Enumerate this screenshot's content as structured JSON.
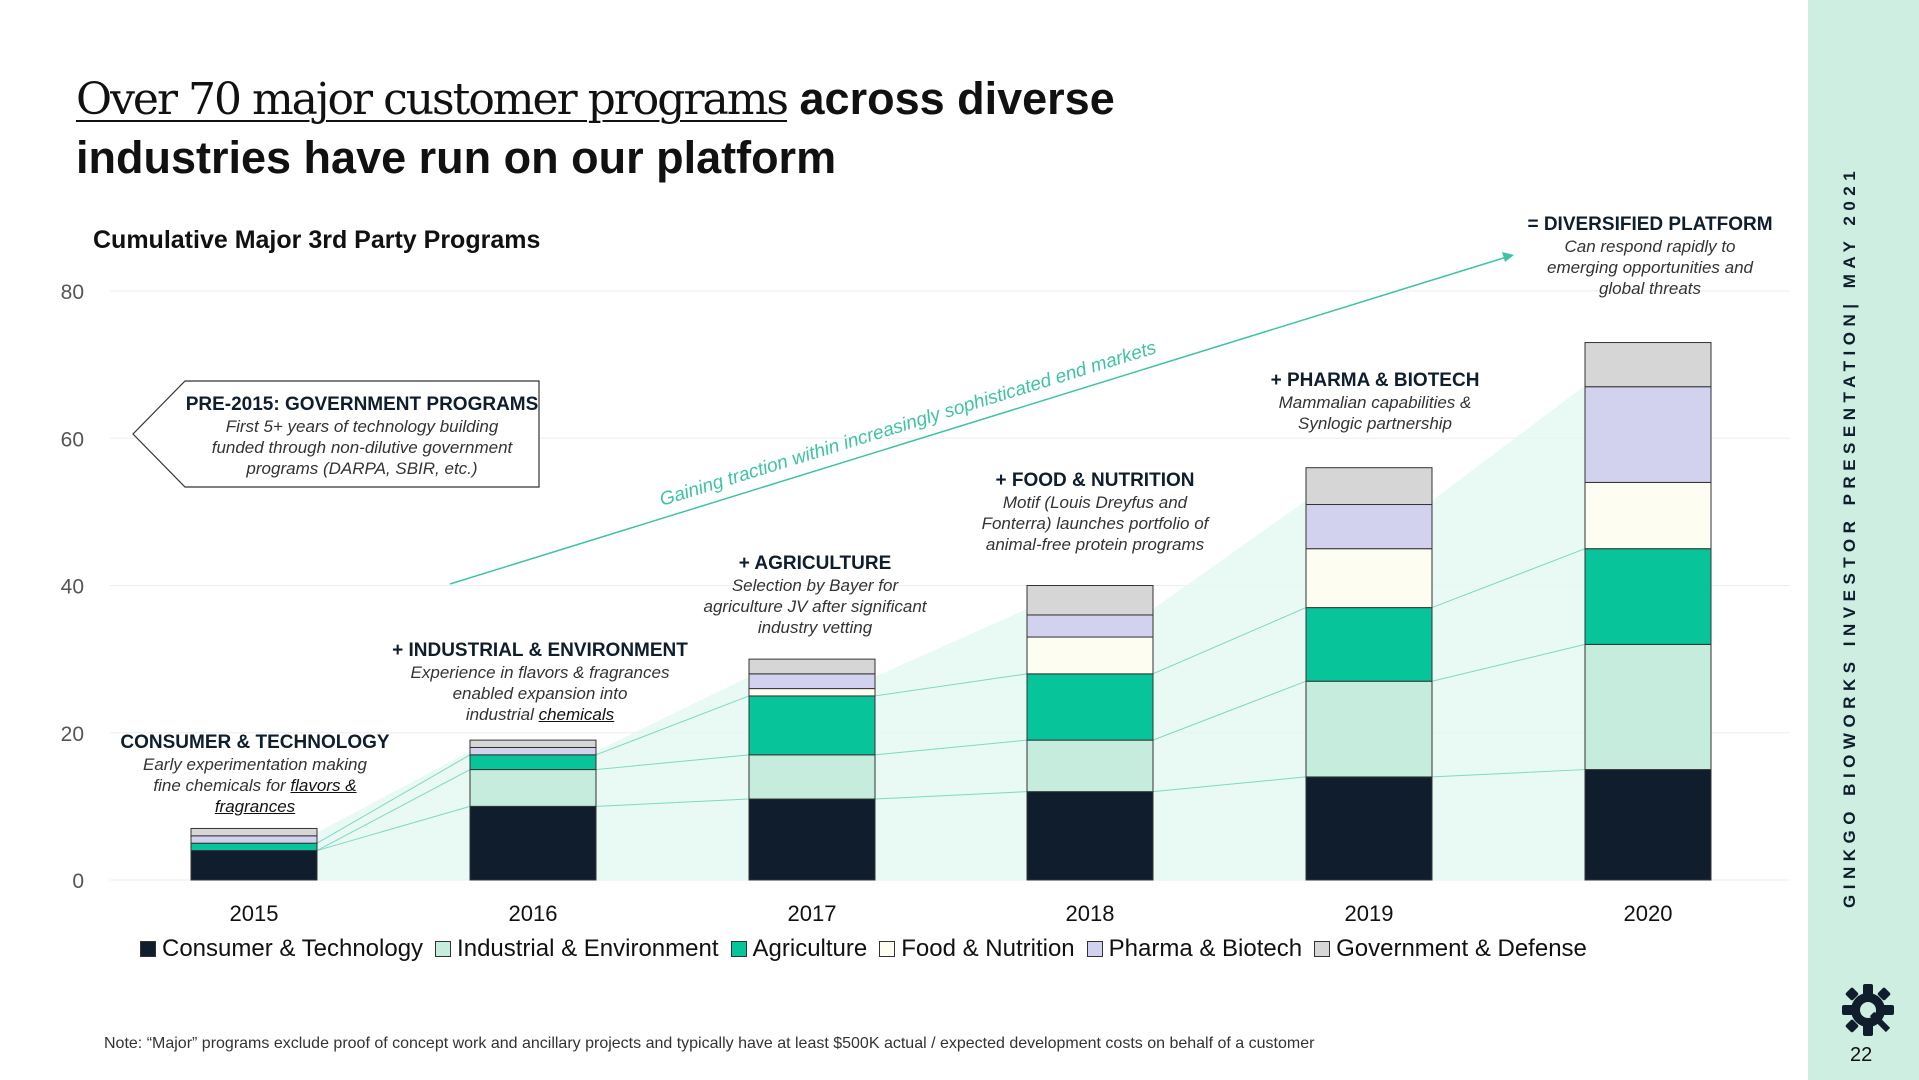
{
  "title": {
    "light": "Over 70 major customer programs",
    "bold1": " across diverse",
    "bold2": "industries have run on our platform"
  },
  "sidebar": {
    "text": "GINKGO BIOWORKS      INVESTOR PRESENTATION| MAY 2021",
    "page_number": "22"
  },
  "footnote": "Note: “Major” programs exclude proof of concept work and ancillary projects and typically have at least $500K actual / expected development costs on behalf of a customer",
  "annotations": {
    "pre2015": {
      "heading": "PRE-2015: GOVERNMENT PROGRAMS",
      "body": [
        "First 5+ years of technology building",
        "funded through non-dilutive government",
        "programs (DARPA, SBIR, etc.)"
      ]
    },
    "consumer": {
      "heading": "CONSUMER & TECHNOLOGY",
      "body1": "Early experimentation making",
      "body2": "fine chemicals for ",
      "link1": "flavors &",
      "link2": "fragrances"
    },
    "industrial": {
      "heading": "+ INDUSTRIAL & ENVIRONMENT",
      "body1": "Experience in flavors & fragrances",
      "body2": "enabled expansion into",
      "body3": "industrial ",
      "link": "chemicals"
    },
    "agriculture": {
      "heading": "+ AGRICULTURE",
      "body": [
        "Selection by Bayer for",
        "agriculture JV after significant",
        "industry vetting"
      ]
    },
    "food": {
      "heading": "+ FOOD & NUTRITION",
      "body": [
        "Motif (Louis Dreyfus and",
        "Fonterra) launches portfolio of",
        "animal-free protein programs"
      ]
    },
    "pharma": {
      "heading": "+ PHARMA & BIOTECH",
      "body": [
        "Mammalian capabilities &",
        "Synlogic partnership"
      ]
    },
    "diversified": {
      "heading": "= DIVERSIFIED PLATFORM",
      "body": [
        "Can respond rapidly to",
        "emerging opportunities and",
        "global threats"
      ]
    },
    "arrow_label": "Gaining traction within increasingly sophisticated end markets"
  },
  "colors": {
    "Consumer & Technology": "#0f1d2d",
    "Industrial & Environment": "#c5ecdc",
    "Agriculture": "#07c49b",
    "Food & Nutrition": "#fdfdf1",
    "Pharma & Biotech": "#d2d2ef",
    "Government & Defense": "#d6d6d6",
    "accent": "#3fc3a5"
  },
  "chart_data": {
    "type": "bar",
    "stacked": true,
    "title": "Cumulative Major 3rd Party Programs",
    "xlabel": "",
    "ylabel": "",
    "ylim": [
      0,
      80
    ],
    "yticks": [
      0,
      20,
      40,
      60,
      80
    ],
    "categories": [
      "2015",
      "2016",
      "2017",
      "2018",
      "2019",
      "2020"
    ],
    "series": [
      {
        "name": "Consumer & Technology",
        "values": [
          4,
          10,
          11,
          12,
          14,
          15
        ]
      },
      {
        "name": "Industrial & Environment",
        "values": [
          0,
          5,
          6,
          7,
          13,
          17
        ]
      },
      {
        "name": "Agriculture",
        "values": [
          1,
          2,
          8,
          9,
          10,
          13
        ]
      },
      {
        "name": "Food & Nutrition",
        "values": [
          0,
          0,
          1,
          5,
          8,
          9
        ]
      },
      {
        "name": "Pharma & Biotech",
        "values": [
          1,
          1,
          2,
          3,
          6,
          13
        ]
      },
      {
        "name": "Government & Defense",
        "values": [
          1,
          1,
          2,
          4,
          5,
          6
        ]
      }
    ],
    "legend_position": "bottom",
    "grid": true
  }
}
